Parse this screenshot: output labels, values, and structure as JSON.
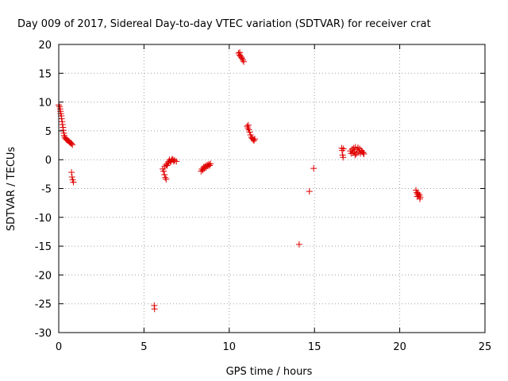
{
  "chart_data": {
    "type": "scatter",
    "title": "Day 009 of 2017, Sidereal Day-to-day VTEC variation (SDTVAR) for receiver crat",
    "xlabel": "GPS time / hours",
    "ylabel": "SDTVAR / TECUs",
    "xlim": [
      0,
      25
    ],
    "ylim": [
      -30,
      20
    ],
    "xticks": [
      0,
      5,
      10,
      15,
      20,
      25
    ],
    "yticks": [
      -30,
      -25,
      -20,
      -15,
      -10,
      -5,
      0,
      5,
      10,
      15,
      20
    ],
    "xtick_labels": [
      "0",
      "5",
      "10",
      "15",
      "20",
      "25"
    ],
    "ytick_labels": [
      "-30",
      "-25",
      "-20",
      "-15",
      "-10",
      "-5",
      "0",
      "5",
      "10",
      "15",
      "20"
    ],
    "grid": true,
    "marker": "+",
    "color": "#e00000",
    "series": [
      {
        "name": "SDTVAR",
        "points": [
          [
            0.0,
            9.5
          ],
          [
            0.05,
            9.2
          ],
          [
            0.08,
            8.8
          ],
          [
            0.1,
            8.4
          ],
          [
            0.12,
            8.0
          ],
          [
            0.15,
            7.6
          ],
          [
            0.17,
            7.1
          ],
          [
            0.2,
            6.6
          ],
          [
            0.22,
            6.1
          ],
          [
            0.25,
            5.6
          ],
          [
            0.27,
            5.1
          ],
          [
            0.3,
            4.6
          ],
          [
            0.32,
            4.2
          ],
          [
            0.35,
            3.9
          ],
          [
            0.4,
            3.7
          ],
          [
            0.45,
            3.5
          ],
          [
            0.5,
            3.4
          ],
          [
            0.55,
            3.3
          ],
          [
            0.6,
            3.2
          ],
          [
            0.65,
            3.0
          ],
          [
            0.7,
            2.9
          ],
          [
            0.75,
            2.8
          ],
          [
            0.8,
            2.6
          ],
          [
            0.75,
            -2.2
          ],
          [
            0.78,
            -3.0
          ],
          [
            0.82,
            -3.5
          ],
          [
            0.86,
            -3.9
          ],
          [
            5.6,
            -25.3
          ],
          [
            5.62,
            -25.9
          ],
          [
            6.1,
            -1.6
          ],
          [
            6.15,
            -2.0
          ],
          [
            6.2,
            -2.6
          ],
          [
            6.25,
            -3.1
          ],
          [
            6.3,
            -3.4
          ],
          [
            6.22,
            -1.2
          ],
          [
            6.35,
            -1.0
          ],
          [
            6.4,
            -0.6
          ],
          [
            6.45,
            -0.3
          ],
          [
            6.5,
            0.0
          ],
          [
            6.6,
            -0.2
          ],
          [
            6.7,
            0.0
          ],
          [
            6.8,
            -0.1
          ],
          [
            6.9,
            -0.3
          ],
          [
            6.55,
            -0.4
          ],
          [
            6.65,
            0.1
          ],
          [
            6.75,
            -0.3
          ],
          [
            6.3,
            -0.9
          ],
          [
            8.35,
            -2.0
          ],
          [
            8.4,
            -1.6
          ],
          [
            8.45,
            -1.8
          ],
          [
            8.5,
            -1.3
          ],
          [
            8.55,
            -1.5
          ],
          [
            8.6,
            -1.1
          ],
          [
            8.65,
            -1.3
          ],
          [
            8.7,
            -0.9
          ],
          [
            8.75,
            -1.1
          ],
          [
            8.8,
            -0.8
          ],
          [
            8.85,
            -1.0
          ],
          [
            8.9,
            -0.7
          ],
          [
            10.55,
            18.5
          ],
          [
            10.6,
            18.2
          ],
          [
            10.65,
            18.0
          ],
          [
            10.7,
            17.8
          ],
          [
            10.75,
            17.6
          ],
          [
            10.8,
            17.3
          ],
          [
            10.85,
            17.0
          ],
          [
            10.62,
            18.6
          ],
          [
            11.05,
            5.8
          ],
          [
            11.1,
            5.5
          ],
          [
            11.15,
            5.2
          ],
          [
            11.2,
            4.8
          ],
          [
            11.25,
            4.3
          ],
          [
            11.3,
            3.9
          ],
          [
            11.35,
            3.7
          ],
          [
            11.4,
            3.5
          ],
          [
            11.45,
            3.3
          ],
          [
            11.5,
            3.6
          ],
          [
            11.12,
            6.0
          ],
          [
            14.1,
            -14.7
          ],
          [
            14.7,
            -5.5
          ],
          [
            14.95,
            -1.5
          ],
          [
            16.6,
            2.0
          ],
          [
            16.62,
            1.6
          ],
          [
            16.65,
            0.8
          ],
          [
            16.68,
            0.4
          ],
          [
            16.7,
            1.9
          ],
          [
            17.1,
            1.5
          ],
          [
            17.2,
            1.8
          ],
          [
            17.25,
            1.2
          ],
          [
            17.3,
            2.0
          ],
          [
            17.35,
            1.4
          ],
          [
            17.4,
            2.2
          ],
          [
            17.45,
            1.0
          ],
          [
            17.5,
            1.7
          ],
          [
            17.55,
            2.1
          ],
          [
            17.6,
            1.3
          ],
          [
            17.65,
            1.9
          ],
          [
            17.7,
            1.1
          ],
          [
            17.75,
            1.6
          ],
          [
            17.8,
            1.4
          ],
          [
            17.85,
            1.2
          ],
          [
            17.9,
            1.0
          ],
          [
            17.15,
            1.1
          ],
          [
            17.38,
            0.8
          ],
          [
            20.95,
            -5.3
          ],
          [
            21.0,
            -5.7
          ],
          [
            21.05,
            -6.0
          ],
          [
            21.1,
            -6.3
          ],
          [
            21.15,
            -6.1
          ],
          [
            21.2,
            -6.5
          ],
          [
            21.08,
            -5.8
          ],
          [
            21.18,
            -6.8
          ],
          [
            21.03,
            -6.4
          ]
        ]
      }
    ]
  }
}
